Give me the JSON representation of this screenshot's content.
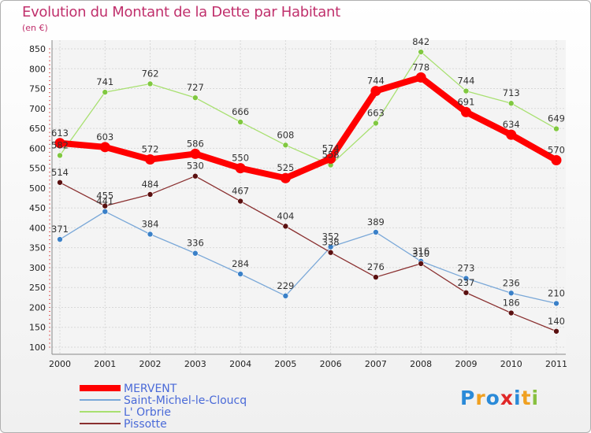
{
  "chart_data": {
    "type": "line",
    "title": "Evolution du Montant de la Dette par Habitant",
    "subtitle": "(en €)",
    "xlabel": "",
    "ylabel": "",
    "categories": [
      "2000",
      "2001",
      "2002",
      "2003",
      "2004",
      "2005",
      "2006",
      "2007",
      "2008",
      "2009",
      "2010",
      "2011"
    ],
    "ylim": [
      100,
      850
    ],
    "yticks": [
      100,
      150,
      200,
      250,
      300,
      350,
      400,
      450,
      500,
      550,
      600,
      650,
      700,
      750,
      800,
      850
    ],
    "grid": true,
    "legend_position": "bottom-left",
    "series": [
      {
        "name": "MERVENT",
        "color": "#ff0000",
        "values": [
          613,
          603,
          572,
          586,
          550,
          525,
          574,
          744,
          778,
          691,
          634,
          570
        ]
      },
      {
        "name": "Saint-Michel-le-Cloucq",
        "color": "#4a90d0",
        "values": [
          371,
          441,
          384,
          336,
          284,
          229,
          352,
          389,
          316,
          273,
          236,
          210
        ]
      },
      {
        "name": "L' Orbrie",
        "color": "#88d048",
        "values": [
          582,
          741,
          762,
          727,
          666,
          608,
          558,
          663,
          842,
          744,
          713,
          649
        ]
      },
      {
        "name": "Pissotte",
        "color": "#7a1e1e",
        "values": [
          514,
          455,
          484,
          530,
          467,
          404,
          338,
          276,
          310,
          237,
          186,
          140
        ]
      }
    ]
  },
  "logo": {
    "letters": [
      "P",
      "r",
      "o",
      "x",
      "i",
      "t",
      "i"
    ],
    "colors": [
      "#2a8ad8",
      "#f0a020",
      "#2a8ad8",
      "#e02828",
      "#2a8ad8",
      "#f0a020",
      "#88c040"
    ]
  }
}
